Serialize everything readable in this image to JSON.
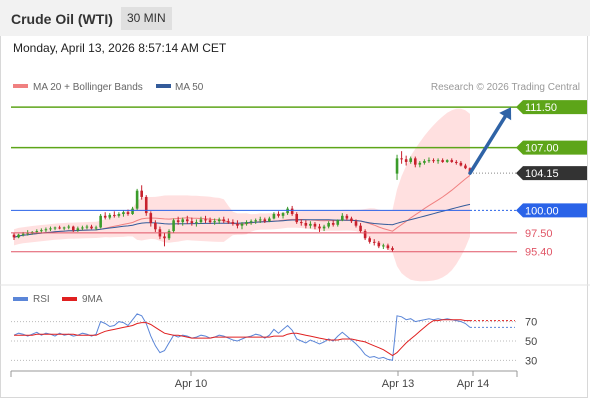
{
  "header": {
    "title": "Crude Oil (WTI)",
    "timeframe": "30 MIN",
    "datetime": "Monday, April 13, 2026 8:57:14 AM CET"
  },
  "legend": {
    "ma20_bollinger": "MA 20 + Bollinger Bands",
    "ma50": "MA 50",
    "credit": "Research © 2026 Trading Central",
    "rsi": "RSI",
    "rsi_ma": "9MA"
  },
  "colors": {
    "bollinger": "#ffd5d5",
    "ma20": "#f08080",
    "ma50": "#335b9a",
    "resistance": "#5da519",
    "pivot": "#2a63e8",
    "support": "#e05566",
    "current": "#333333",
    "rsi": "#5b86d8",
    "rsi_ma": "#e02020",
    "candle_up": "#3a9b2a",
    "candle_down": "#c8202d",
    "arrow": "#2f63a6"
  },
  "chart_data": [
    {
      "type": "candlestick",
      "title": "",
      "x_labels": [
        "Apr 10",
        "Apr 13",
        "Apr 14"
      ],
      "ylim": [
        94.7,
        112.3
      ],
      "levels": [
        {
          "label": "111.50",
          "value": 111.5,
          "kind": "resistance",
          "style": "flag"
        },
        {
          "label": "107.00",
          "value": 107.0,
          "kind": "resistance",
          "style": "flag"
        },
        {
          "label": "104.15",
          "value": 104.15,
          "kind": "current",
          "style": "flag"
        },
        {
          "label": "100.00",
          "value": 100.0,
          "kind": "pivot",
          "style": "flag"
        },
        {
          "label": "97.50",
          "value": 97.5,
          "kind": "support",
          "style": "text"
        },
        {
          "label": "95.40",
          "value": 95.4,
          "kind": "support",
          "style": "text"
        }
      ],
      "candles": [
        [
          97.3,
          97.5,
          96.7,
          97.0
        ],
        [
          97.0,
          97.4,
          96.9,
          97.3
        ],
        [
          97.3,
          97.6,
          97.1,
          97.4
        ],
        [
          97.4,
          97.8,
          97.2,
          97.5
        ],
        [
          97.5,
          97.7,
          97.3,
          97.6
        ],
        [
          97.6,
          97.9,
          97.4,
          97.7
        ],
        [
          97.7,
          98.0,
          97.5,
          97.8
        ],
        [
          97.8,
          98.1,
          97.6,
          97.9
        ],
        [
          97.9,
          98.2,
          97.7,
          98.0
        ],
        [
          98.0,
          98.2,
          97.8,
          98.1
        ],
        [
          98.1,
          98.3,
          97.9,
          98.0
        ],
        [
          98.0,
          98.2,
          97.8,
          98.1
        ],
        [
          98.1,
          98.4,
          97.9,
          98.2
        ],
        [
          98.2,
          98.3,
          97.6,
          97.8
        ],
        [
          97.8,
          98.2,
          97.6,
          98.0
        ],
        [
          98.0,
          98.3,
          97.8,
          98.1
        ],
        [
          98.1,
          98.4,
          97.9,
          98.2
        ],
        [
          98.2,
          98.4,
          97.9,
          98.0
        ],
        [
          98.0,
          98.3,
          97.8,
          98.1
        ],
        [
          98.1,
          99.6,
          98.0,
          99.4
        ],
        [
          99.4,
          99.8,
          99.0,
          99.2
        ],
        [
          99.2,
          99.7,
          99.0,
          99.5
        ],
        [
          99.5,
          99.9,
          99.2,
          99.4
        ],
        [
          99.4,
          99.8,
          99.2,
          99.6
        ],
        [
          99.6,
          100.0,
          99.3,
          99.8
        ],
        [
          99.8,
          100.1,
          99.4,
          99.6
        ],
        [
          99.6,
          100.4,
          99.5,
          100.2
        ],
        [
          100.2,
          102.4,
          100.0,
          102.2
        ],
        [
          102.2,
          102.8,
          101.2,
          101.5
        ],
        [
          101.5,
          101.7,
          99.4,
          99.7
        ],
        [
          99.7,
          99.9,
          98.2,
          98.6
        ],
        [
          98.6,
          98.9,
          97.6,
          97.9
        ],
        [
          97.9,
          98.2,
          96.8,
          97.1
        ],
        [
          97.1,
          97.5,
          96.0,
          96.9
        ],
        [
          96.9,
          97.9,
          96.7,
          97.7
        ],
        [
          97.7,
          99.1,
          97.5,
          98.9
        ],
        [
          98.9,
          99.3,
          98.4,
          98.7
        ],
        [
          98.7,
          99.2,
          98.3,
          99.0
        ],
        [
          99.0,
          99.4,
          98.5,
          98.8
        ],
        [
          98.8,
          99.2,
          98.3,
          98.6
        ],
        [
          98.6,
          99.0,
          98.2,
          98.7
        ],
        [
          98.7,
          99.3,
          98.5,
          99.0
        ],
        [
          99.0,
          99.4,
          98.6,
          98.9
        ],
        [
          98.9,
          99.2,
          98.5,
          98.7
        ],
        [
          98.7,
          99.1,
          98.4,
          98.8
        ],
        [
          98.8,
          99.2,
          98.5,
          99.0
        ],
        [
          99.0,
          99.3,
          98.6,
          98.8
        ],
        [
          98.8,
          99.1,
          98.5,
          98.7
        ],
        [
          98.7,
          99.0,
          98.3,
          98.5
        ],
        [
          98.5,
          98.9,
          98.0,
          98.3
        ],
        [
          98.3,
          98.7,
          97.9,
          98.5
        ],
        [
          98.5,
          98.9,
          98.3,
          98.7
        ],
        [
          98.7,
          99.0,
          98.4,
          98.8
        ],
        [
          98.8,
          99.1,
          98.5,
          98.9
        ],
        [
          98.9,
          99.3,
          98.6,
          99.0
        ],
        [
          99.0,
          99.2,
          98.6,
          98.8
        ],
        [
          98.8,
          99.3,
          98.7,
          99.1
        ],
        [
          99.1,
          99.8,
          99.0,
          99.6
        ],
        [
          99.6,
          99.9,
          99.2,
          99.4
        ],
        [
          99.4,
          99.8,
          99.1,
          99.7
        ],
        [
          99.7,
          100.4,
          99.5,
          100.2
        ],
        [
          100.2,
          100.5,
          99.4,
          99.6
        ],
        [
          99.6,
          99.8,
          98.5,
          98.7
        ],
        [
          98.7,
          99.0,
          98.3,
          98.6
        ],
        [
          98.6,
          98.9,
          98.0,
          98.3
        ],
        [
          98.3,
          98.8,
          98.0,
          98.5
        ],
        [
          98.5,
          98.7,
          97.9,
          98.2
        ],
        [
          98.2,
          98.5,
          97.6,
          98.0
        ],
        [
          98.0,
          98.4,
          97.7,
          98.2
        ],
        [
          98.2,
          98.8,
          98.0,
          98.6
        ],
        [
          98.6,
          98.9,
          98.2,
          98.4
        ],
        [
          98.4,
          99.0,
          98.2,
          98.9
        ],
        [
          98.9,
          99.7,
          98.8,
          99.4
        ],
        [
          99.4,
          99.6,
          98.9,
          99.1
        ],
        [
          99.1,
          99.3,
          98.6,
          98.8
        ],
        [
          98.8,
          99.0,
          98.1,
          98.3
        ],
        [
          98.3,
          98.6,
          97.5,
          97.7
        ],
        [
          97.7,
          97.9,
          96.7,
          96.9
        ],
        [
          96.9,
          97.1,
          96.3,
          96.5
        ],
        [
          96.5,
          96.8,
          96.1,
          96.4
        ],
        [
          96.4,
          96.6,
          95.8,
          96.0
        ],
        [
          96.0,
          96.3,
          95.7,
          96.1
        ],
        [
          96.1,
          96.3,
          95.6,
          95.8
        ],
        [
          95.8,
          96.0,
          95.4,
          95.6
        ],
        [
          104.1,
          106.2,
          103.4,
          105.8
        ],
        [
          105.8,
          106.6,
          105.2,
          105.7
        ],
        [
          105.7,
          106.1,
          105.0,
          105.4
        ],
        [
          105.4,
          106.0,
          105.2,
          105.8
        ],
        [
          105.8,
          106.0,
          104.8,
          105.1
        ],
        [
          105.1,
          105.5,
          104.8,
          105.3
        ],
        [
          105.3,
          105.7,
          105.1,
          105.5
        ],
        [
          105.5,
          105.9,
          105.3,
          105.6
        ],
        [
          105.6,
          105.8,
          105.3,
          105.5
        ],
        [
          105.5,
          105.8,
          105.2,
          105.6
        ],
        [
          105.6,
          105.8,
          105.3,
          105.4
        ],
        [
          105.4,
          105.7,
          105.3,
          105.6
        ],
        [
          105.6,
          105.8,
          105.3,
          105.4
        ],
        [
          105.4,
          105.6,
          105.1,
          105.3
        ],
        [
          105.3,
          105.5,
          104.9,
          105.0
        ],
        [
          105.0,
          105.2,
          104.6,
          104.7
        ],
        [
          104.7,
          104.8,
          104.0,
          104.15
        ]
      ],
      "forecast": {
        "from": 104.15,
        "to": 111.5
      }
    },
    {
      "type": "line",
      "title": "",
      "ylim": [
        20,
        82
      ],
      "y_ticks": [
        70,
        50,
        30
      ],
      "reference_lines": [
        70,
        50,
        30
      ],
      "series": [
        {
          "name": "RSI",
          "values": [
            56,
            58,
            57,
            55,
            57,
            59,
            56,
            58,
            57,
            55,
            58,
            56,
            57,
            55,
            56,
            58,
            57,
            55,
            57,
            70,
            68,
            65,
            66,
            70,
            69,
            66,
            72,
            78,
            76,
            68,
            55,
            45,
            38,
            40,
            48,
            56,
            54,
            56,
            55,
            53,
            54,
            56,
            55,
            53,
            54,
            56,
            55,
            53,
            51,
            50,
            52,
            54,
            55,
            57,
            56,
            53,
            56,
            62,
            58,
            62,
            66,
            61,
            52,
            50,
            48,
            51,
            49,
            47,
            49,
            52,
            50,
            55,
            59,
            55,
            51,
            47,
            42,
            36,
            33,
            34,
            32,
            33,
            31,
            30,
            76,
            75,
            72,
            73,
            70,
            71,
            72,
            73,
            72,
            73,
            72,
            73,
            72,
            71,
            70,
            68,
            64
          ]
        },
        {
          "name": "9MA",
          "values": [
            56,
            56,
            56,
            56,
            56,
            57,
            57,
            57,
            57,
            57,
            57,
            57,
            57,
            57,
            56,
            56,
            56,
            56,
            56,
            58,
            60,
            61,
            62,
            63,
            64,
            65,
            66,
            68,
            69,
            69,
            67,
            64,
            61,
            58,
            57,
            56,
            56,
            55,
            54,
            53,
            53,
            53,
            53,
            53,
            54,
            54,
            54,
            54,
            54,
            54,
            54,
            54,
            54,
            54,
            54,
            54,
            54,
            55,
            55,
            55,
            57,
            58,
            58,
            57,
            56,
            55,
            54,
            53,
            52,
            51,
            51,
            51,
            52,
            52,
            52,
            51,
            50,
            49,
            47,
            45,
            43,
            41,
            38,
            35,
            38,
            43,
            48,
            52,
            56,
            60,
            64,
            68,
            71,
            71,
            72,
            72,
            72,
            72,
            72,
            71,
            71
          ]
        }
      ]
    }
  ]
}
